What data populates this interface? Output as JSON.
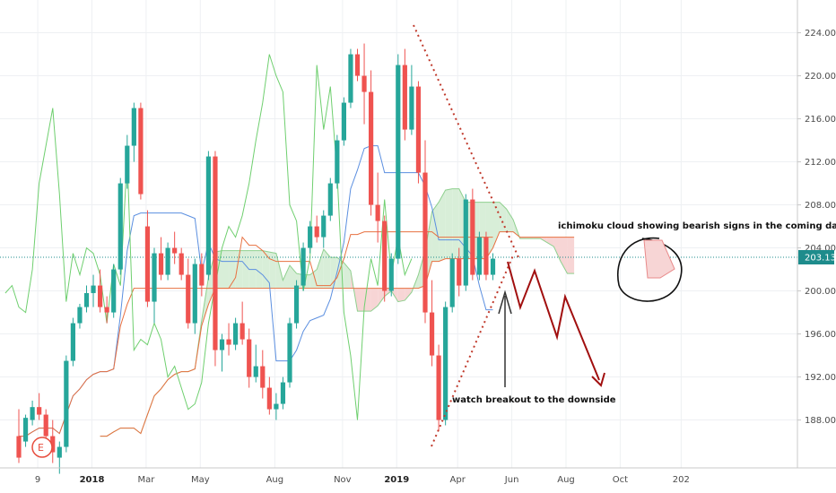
{
  "chart_data": {
    "type": "candlestick",
    "ylim": [
      184,
      225
    ],
    "y_ticks": [
      188,
      192,
      196,
      200,
      204,
      208,
      212,
      216,
      220,
      224
    ],
    "y_tick_labels": [
      "188.00",
      "192.00",
      "196.00",
      "200.00",
      "204.00",
      "208.00",
      "212.00",
      "216.00",
      "220.00",
      "224.00"
    ],
    "current_price": 203.13,
    "current_price_label": "203.13",
    "x_ticks": [
      {
        "label": "9",
        "i": 2,
        "bold": false
      },
      {
        "label": "2018",
        "i": 10,
        "bold": true
      },
      {
        "label": "Mar",
        "i": 18,
        "bold": false
      },
      {
        "label": "May",
        "i": 26,
        "bold": false
      },
      {
        "label": "Aug",
        "i": 37,
        "bold": false
      },
      {
        "label": "Nov",
        "i": 47,
        "bold": false
      },
      {
        "label": "2019",
        "i": 55,
        "bold": true
      },
      {
        "label": "Apr",
        "i": 64,
        "bold": false
      },
      {
        "label": "Jun",
        "i": 72,
        "bold": false
      },
      {
        "label": "Aug",
        "i": 80,
        "bold": false
      },
      {
        "label": "Oct",
        "i": 88,
        "bold": false
      },
      {
        "label": "202",
        "i": 97,
        "bold": false
      }
    ],
    "candles": [
      [
        186.5,
        189.0,
        184.0,
        184.5
      ],
      [
        186.0,
        188.5,
        185.5,
        188.2
      ],
      [
        188.0,
        189.8,
        187.5,
        189.2
      ],
      [
        189.2,
        190.5,
        188.0,
        188.5
      ],
      [
        188.5,
        189.0,
        186.0,
        186.5
      ],
      [
        186.5,
        188.0,
        184.0,
        185.0
      ],
      [
        184.5,
        186.0,
        183.0,
        185.5
      ],
      [
        185.5,
        194.0,
        185.0,
        193.5
      ],
      [
        193.5,
        197.5,
        193.0,
        197.0
      ],
      [
        197.0,
        198.8,
        196.5,
        198.5
      ],
      [
        198.5,
        200.5,
        198.0,
        199.8
      ],
      [
        199.8,
        201.5,
        198.5,
        200.5
      ],
      [
        200.5,
        202.0,
        198.0,
        198.5
      ],
      [
        198.5,
        199.5,
        197.0,
        198.0
      ],
      [
        198.0,
        202.5,
        197.5,
        202.0
      ],
      [
        202.0,
        210.5,
        201.5,
        210.0
      ],
      [
        210.0,
        214.5,
        209.5,
        213.5
      ],
      [
        213.5,
        217.5,
        212.0,
        217.0
      ],
      [
        217.0,
        217.5,
        208.5,
        209.0
      ],
      [
        206.0,
        207.5,
        198.5,
        199.0
      ],
      [
        199.0,
        204.0,
        197.0,
        203.5
      ],
      [
        203.5,
        205.0,
        201.0,
        201.5
      ],
      [
        201.5,
        204.5,
        201.0,
        204.0
      ],
      [
        204.0,
        205.5,
        202.5,
        203.5
      ],
      [
        203.5,
        204.0,
        201.0,
        201.5
      ],
      [
        201.5,
        203.0,
        196.5,
        197.0
      ],
      [
        197.0,
        203.0,
        196.0,
        202.5
      ],
      [
        202.5,
        203.5,
        199.5,
        200.5
      ],
      [
        201.5,
        213.0,
        201.0,
        212.5
      ],
      [
        212.5,
        213.0,
        193.0,
        194.5
      ],
      [
        194.5,
        196.0,
        192.5,
        195.5
      ],
      [
        195.5,
        197.0,
        194.0,
        195.0
      ],
      [
        195.0,
        197.5,
        194.5,
        197.0
      ],
      [
        197.0,
        199.0,
        195.0,
        195.5
      ],
      [
        195.5,
        196.5,
        191.0,
        192.0
      ],
      [
        192.0,
        195.0,
        191.5,
        193.0
      ],
      [
        193.0,
        194.5,
        190.0,
        191.0
      ],
      [
        191.0,
        192.0,
        188.5,
        189.0
      ],
      [
        189.0,
        190.5,
        188.0,
        189.5
      ],
      [
        189.5,
        192.0,
        189.0,
        191.5
      ],
      [
        191.5,
        197.5,
        191.0,
        197.0
      ],
      [
        197.0,
        201.0,
        196.5,
        200.5
      ],
      [
        200.5,
        204.5,
        200.0,
        204.0
      ],
      [
        204.0,
        206.5,
        203.5,
        206.0
      ],
      [
        206.0,
        207.0,
        204.5,
        205.0
      ],
      [
        205.0,
        207.5,
        204.0,
        207.0
      ],
      [
        207.0,
        210.5,
        206.5,
        210.0
      ],
      [
        210.0,
        214.5,
        209.5,
        214.0
      ],
      [
        214.0,
        218.0,
        213.5,
        217.5
      ],
      [
        217.5,
        222.5,
        217.0,
        222.0
      ],
      [
        222.0,
        222.5,
        219.5,
        220.0
      ],
      [
        220.0,
        223.0,
        215.5,
        218.5
      ],
      [
        218.5,
        220.5,
        207.0,
        208.0
      ],
      [
        208.0,
        211.0,
        204.5,
        206.5
      ],
      [
        206.5,
        207.0,
        199.0,
        200.0
      ],
      [
        200.0,
        203.5,
        199.5,
        203.0
      ],
      [
        203.0,
        222.0,
        202.5,
        221.0
      ],
      [
        221.0,
        222.5,
        214.0,
        215.0
      ],
      [
        215.0,
        221.0,
        214.5,
        219.0
      ],
      [
        219.0,
        219.5,
        210.0,
        211.0
      ],
      [
        211.0,
        214.0,
        197.0,
        198.0
      ],
      [
        198.0,
        201.0,
        193.0,
        194.0
      ],
      [
        194.0,
        195.0,
        187.0,
        188.0
      ],
      [
        188.0,
        199.0,
        187.5,
        198.5
      ],
      [
        198.5,
        203.5,
        198.0,
        203.0
      ],
      [
        203.0,
        204.0,
        199.5,
        200.5
      ],
      [
        200.5,
        209.0,
        200.0,
        208.5
      ],
      [
        208.5,
        209.5,
        201.0,
        201.5
      ],
      [
        201.5,
        205.5,
        201.0,
        205.0
      ],
      [
        205.0,
        205.5,
        201.0,
        201.5
      ],
      [
        201.5,
        203.5,
        201.0,
        203.0
      ]
    ],
    "annotations": [
      {
        "text": "ichimoku cloud showing bearish signs in the coming days or"
      },
      {
        "text": "watch breakout to the downside"
      }
    ]
  },
  "colors": {
    "bull": "#26a69a",
    "bear": "#ef5350",
    "tenkan": "#5b8fe0",
    "kijun": "#e87040",
    "chikou": "#6fcf6f",
    "cloud_bull": "#d8eed8",
    "cloud_bear": "#f7d5d5",
    "projection": "#a10f0f",
    "price_line": "#1e8c8c"
  }
}
